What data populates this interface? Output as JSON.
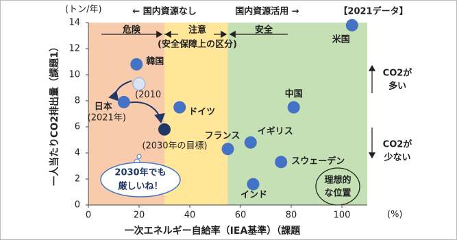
{
  "chart_data": {
    "type": "scatter",
    "unit_y": "(トン/年)",
    "unit_x": "(%)",
    "y_label": "一人当たりCO2排出量（課題1）",
    "x_label": "一次エネルギー自給率（IEA基準）（課題",
    "top_left": "← 国内資源なし",
    "top_mid": "国内資源活用 →",
    "top_right": "【2021データ】",
    "xlim": [
      0,
      110
    ],
    "ylim": [
      0,
      14
    ],
    "xticks": [
      0,
      20,
      40,
      60,
      80,
      100
    ],
    "yticks": [
      0,
      2,
      4,
      6,
      8,
      10,
      12,
      14
    ],
    "zones": [
      {
        "from": 0,
        "to": 30,
        "label": "危険",
        "color": "#f8cbad"
      },
      {
        "from": 30,
        "to": 55,
        "label": "注意",
        "color": "#ffe699"
      },
      {
        "from": 55,
        "to": 110,
        "label": "安全",
        "color": "#c5e0b4"
      }
    ],
    "zone_note": "(安全保障上の区分)",
    "side_high": [
      "CO2が",
      "多い"
    ],
    "side_low": [
      "CO2が",
      "少ない"
    ],
    "bubble": [
      "2030年でも",
      "厳しいね！"
    ],
    "ideal": [
      "理想的",
      "な位置"
    ],
    "points": [
      {
        "x": 104,
        "y": 13.8,
        "label": [
          "米国"
        ],
        "color": "#4472c4"
      },
      {
        "x": 19,
        "y": 10.8,
        "label": [
          "韓国"
        ],
        "color": "#4472c4"
      },
      {
        "x": 20,
        "y": 9.3,
        "label": [
          "(2010"
        ],
        "color": "#dae3f3"
      },
      {
        "x": 14,
        "y": 7.9,
        "label": [
          "日本",
          "(2021年)"
        ],
        "color": "#4472c4"
      },
      {
        "x": 30,
        "y": 5.8,
        "label": [
          "(2030年の目標)"
        ],
        "color": "#203864"
      },
      {
        "x": 36,
        "y": 7.5,
        "label": [
          "ドイツ"
        ],
        "color": "#4472c4"
      },
      {
        "x": 81,
        "y": 7.5,
        "label": [
          "中国"
        ],
        "color": "#4472c4"
      },
      {
        "x": 55,
        "y": 4.3,
        "label": [
          "フランス"
        ],
        "color": "#4472c4"
      },
      {
        "x": 64,
        "y": 4.8,
        "label": [
          "イギリス"
        ],
        "color": "#4472c4"
      },
      {
        "x": 76,
        "y": 3.3,
        "label": [
          "スウェーデン"
        ],
        "color": "#4472c4"
      },
      {
        "x": 65,
        "y": 1.6,
        "label": [
          "インド"
        ],
        "color": "#4472c4"
      }
    ]
  }
}
